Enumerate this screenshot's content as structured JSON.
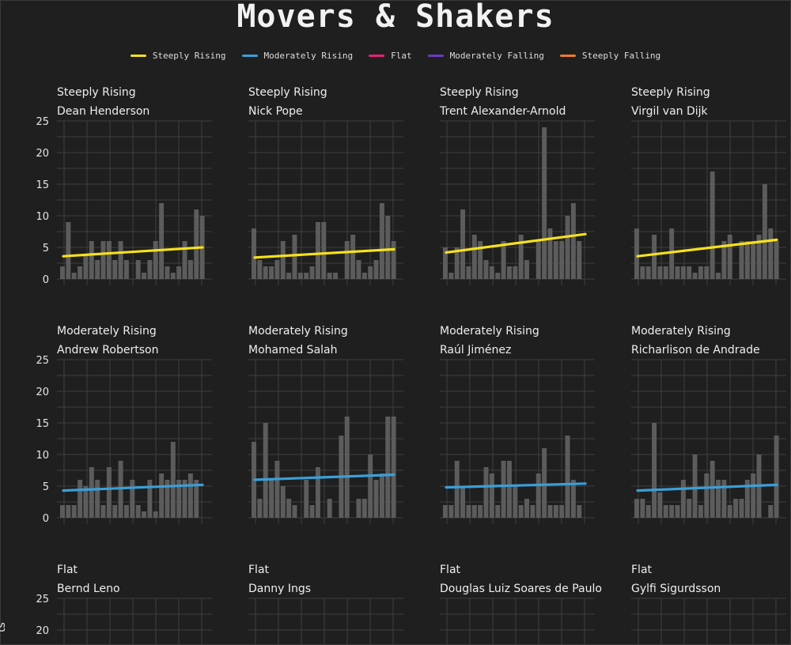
{
  "page": {
    "title": "Movers & Shakers",
    "y_axis_title_fragment": "ts"
  },
  "legend": [
    {
      "label": "Steeply Rising",
      "color": "#f7e11c"
    },
    {
      "label": "Moderately Rising",
      "color": "#3a9fd8"
    },
    {
      "label": "Flat",
      "color": "#e8207a"
    },
    {
      "label": "Moderately Falling",
      "color": "#6a3cc4"
    },
    {
      "label": "Steeply Falling",
      "color": "#f07a2a"
    }
  ],
  "bar_color": "#5c5c5c",
  "chart_data": [
    {
      "type": "bar",
      "category": "Steeply Rising",
      "title": "Dean Henderson",
      "ylim": [
        0,
        25
      ],
      "yticks": [
        0,
        5,
        10,
        15,
        20,
        25
      ],
      "values": [
        2,
        9,
        1,
        2,
        4,
        6,
        3,
        6,
        6,
        3,
        6,
        3,
        0,
        3,
        1,
        3,
        6,
        12,
        2,
        1,
        2,
        6,
        3,
        11,
        10
      ],
      "trend": {
        "start": 3.6,
        "end": 5.0,
        "color": "#f7e11c"
      }
    },
    {
      "type": "bar",
      "category": "Steeply Rising",
      "title": "Nick Pope",
      "ylim": [
        0,
        25
      ],
      "yticks": [
        0,
        5,
        10,
        15,
        20,
        25
      ],
      "values": [
        8,
        3,
        2,
        2,
        3,
        6,
        1,
        7,
        1,
        1,
        2,
        9,
        9,
        1,
        1,
        0,
        6,
        7,
        3,
        1,
        2,
        3,
        12,
        10,
        6
      ],
      "trend": {
        "start": 3.4,
        "end": 4.7,
        "color": "#f7e11c"
      }
    },
    {
      "type": "bar",
      "category": "Steeply Rising",
      "title": "Trent Alexander-Arnold",
      "ylim": [
        0,
        25
      ],
      "yticks": [
        0,
        5,
        10,
        15,
        20,
        25
      ],
      "values": [
        5,
        1,
        5,
        11,
        2,
        7,
        6,
        3,
        2,
        1,
        6,
        2,
        2,
        7,
        3,
        0,
        6,
        24,
        8,
        6,
        6,
        10,
        12,
        6,
        0
      ],
      "trend": {
        "start": 4.2,
        "end": 7.1,
        "color": "#f7e11c"
      }
    },
    {
      "type": "bar",
      "category": "Steeply Rising",
      "title": "Virgil van Dijk",
      "ylim": [
        0,
        25
      ],
      "yticks": [
        0,
        5,
        10,
        15,
        20,
        25
      ],
      "values": [
        8,
        2,
        2,
        7,
        2,
        2,
        8,
        2,
        2,
        2,
        1,
        2,
        2,
        17,
        1,
        6,
        7,
        0,
        6,
        6,
        6,
        7,
        15,
        8,
        6
      ],
      "trend": {
        "start": 3.6,
        "end": 6.2,
        "color": "#f7e11c"
      }
    },
    {
      "type": "bar",
      "category": "Moderately Rising",
      "title": "Andrew Robertson",
      "ylim": [
        0,
        25
      ],
      "yticks": [
        0,
        5,
        10,
        15,
        20,
        25
      ],
      "values": [
        2,
        2,
        2,
        6,
        5,
        8,
        6,
        2,
        8,
        2,
        9,
        2,
        6,
        2,
        1,
        6,
        1,
        7,
        6,
        12,
        6,
        6,
        7,
        6,
        0
      ],
      "trend": {
        "start": 4.3,
        "end": 5.2,
        "color": "#3a9fd8"
      }
    },
    {
      "type": "bar",
      "category": "Moderately Rising",
      "title": "Mohamed Salah",
      "ylim": [
        0,
        25
      ],
      "yticks": [
        0,
        5,
        10,
        15,
        20,
        25
      ],
      "values": [
        12,
        3,
        15,
        6,
        9,
        5,
        3,
        2,
        0,
        6,
        2,
        8,
        0,
        3,
        0,
        13,
        16,
        0,
        3,
        3,
        10,
        6,
        7,
        16,
        16
      ],
      "trend": {
        "start": 6.0,
        "end": 6.8,
        "color": "#3a9fd8"
      }
    },
    {
      "type": "bar",
      "category": "Moderately Rising",
      "title": "Raúl Jiménez",
      "ylim": [
        0,
        25
      ],
      "yticks": [
        0,
        5,
        10,
        15,
        20,
        25
      ],
      "values": [
        2,
        2,
        9,
        5,
        2,
        2,
        2,
        8,
        7,
        2,
        9,
        9,
        5,
        2,
        3,
        2,
        7,
        11,
        2,
        2,
        2,
        13,
        6,
        2,
        0
      ],
      "trend": {
        "start": 4.8,
        "end": 5.4,
        "color": "#3a9fd8"
      }
    },
    {
      "type": "bar",
      "category": "Moderately Rising",
      "title": "Richarlison de Andrade",
      "ylim": [
        0,
        25
      ],
      "yticks": [
        0,
        5,
        10,
        15,
        20,
        25
      ],
      "values": [
        3,
        3,
        2,
        15,
        4,
        2,
        2,
        2,
        6,
        3,
        10,
        2,
        7,
        9,
        6,
        6,
        2,
        3,
        3,
        6,
        7,
        10,
        0,
        2,
        13
      ],
      "trend": {
        "start": 4.3,
        "end": 5.2,
        "color": "#3a9fd8"
      }
    },
    {
      "type": "bar",
      "category": "Flat",
      "title": "Bernd Leno",
      "ylim": [
        0,
        25
      ],
      "yticks": [
        20,
        25
      ],
      "values": [],
      "trend": null
    },
    {
      "type": "bar",
      "category": "Flat",
      "title": "Danny Ings",
      "ylim": [
        0,
        25
      ],
      "yticks": [
        20,
        25
      ],
      "values": [],
      "trend": null
    },
    {
      "type": "bar",
      "category": "Flat",
      "title": "Douglas Luiz Soares de Paulo",
      "ylim": [
        0,
        25
      ],
      "yticks": [
        20,
        25
      ],
      "values": [],
      "trend": null
    },
    {
      "type": "bar",
      "category": "Flat",
      "title": "Gylfi Sigurdsson",
      "ylim": [
        0,
        25
      ],
      "yticks": [
        20,
        25
      ],
      "values": [],
      "trend": null
    }
  ]
}
